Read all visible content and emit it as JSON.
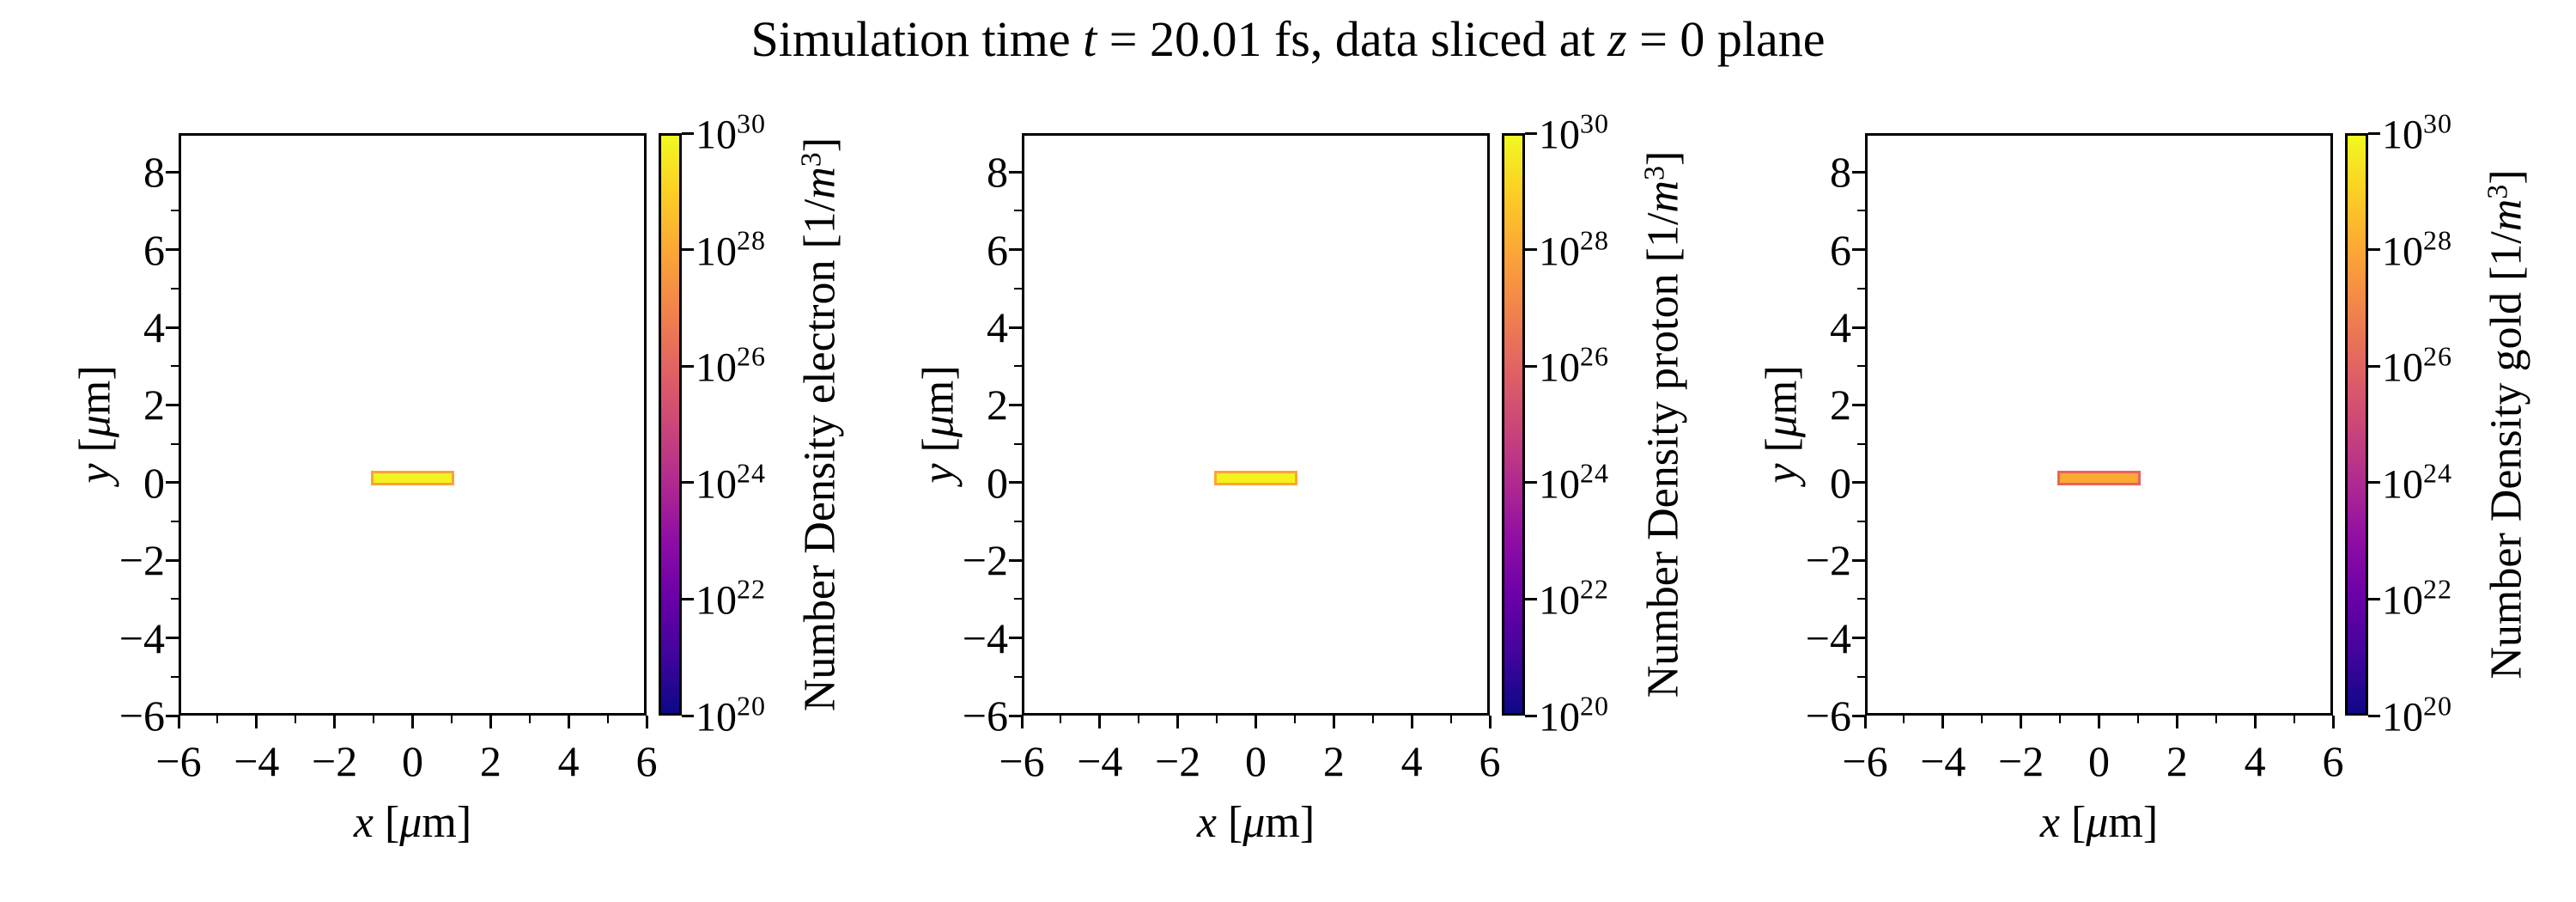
{
  "title": {
    "text": "Simulation time t = 20.01 fs, data sliced at z = 0 plane",
    "segments": [
      {
        "t": "Simulation time "
      },
      {
        "t": "t",
        "i": true
      },
      {
        "t": " = 20.01 fs, data sliced at "
      },
      {
        "t": "z",
        "i": true
      },
      {
        "t": " = 0 plane"
      }
    ]
  },
  "figure": {
    "background": "#ffffff",
    "text_color": "#000000"
  },
  "chart_data": {
    "type": "heatmap",
    "suptitle": "Simulation time t = 20.01 fs, data sliced at z = 0 plane",
    "layout_hint": "three side-by-side x-y density slice maps, each with its own log-scale colorbar on the right; equal aspect; no grid",
    "axes": {
      "xlabel": {
        "text": "x [μm]",
        "segments": [
          {
            "t": "x",
            "i": true
          },
          {
            "t": " ["
          },
          {
            "t": "μ",
            "i": true
          },
          {
            "t": "m]"
          }
        ]
      },
      "ylabel": {
        "text": "y [μm]",
        "segments": [
          {
            "t": "y",
            "i": true
          },
          {
            "t": " ["
          },
          {
            "t": "μ",
            "i": true
          },
          {
            "t": "m]"
          }
        ]
      },
      "xlim": [
        -6,
        6
      ],
      "ylim": [
        -6,
        9
      ],
      "x_major_ticks": [
        -6,
        -4,
        -2,
        0,
        2,
        4,
        6
      ],
      "x_tick_labels": [
        "−6",
        "−4",
        "−2",
        "0",
        "2",
        "4",
        "6"
      ],
      "x_minor_ticks": [
        -5,
        -3,
        -1,
        1,
        3,
        5
      ],
      "y_major_ticks": [
        8,
        6,
        4,
        2,
        0,
        -2,
        -4,
        -6
      ],
      "y_tick_labels": [
        "8",
        "6",
        "4",
        "2",
        "0",
        "−2",
        "−4",
        "−6"
      ],
      "y_minor_ticks": [
        7,
        5,
        3,
        1,
        -1,
        -3,
        -5
      ]
    },
    "colorbar": {
      "scale": "log",
      "min": "1e20",
      "max": "1e30",
      "range_exponents": [
        20,
        30
      ],
      "tick_exponents": [
        30,
        28,
        26,
        24,
        22,
        20
      ],
      "tick_base": "10",
      "tick_labels": [
        "10³⁰",
        "10²⁸",
        "10²⁶",
        "10²⁴",
        "10²²",
        "10²⁰"
      ],
      "colormap": "plasma",
      "gradient_stops": [
        {
          "pos": 0.0,
          "color": "#0d0887"
        },
        {
          "pos": 0.1,
          "color": "#41049d"
        },
        {
          "pos": 0.2,
          "color": "#6a00a8"
        },
        {
          "pos": 0.3,
          "color": "#8f0da4"
        },
        {
          "pos": 0.4,
          "color": "#b12a90"
        },
        {
          "pos": 0.5,
          "color": "#cc4778"
        },
        {
          "pos": 0.6,
          "color": "#e16462"
        },
        {
          "pos": 0.7,
          "color": "#f2844b"
        },
        {
          "pos": 0.8,
          "color": "#fca636"
        },
        {
          "pos": 0.9,
          "color": "#fcce25"
        },
        {
          "pos": 1.0,
          "color": "#f0f921"
        }
      ]
    },
    "panels": [
      {
        "species": "electron",
        "colorbar_label": {
          "text": "Number Density electron [1/m³]",
          "segments": [
            {
              "t": "Number Density electron [1/"
            },
            {
              "t": "m",
              "i": true
            },
            {
              "t": "3",
              "sup": true
            },
            {
              "t": "]"
            }
          ]
        },
        "target": {
          "shape": "rectangle",
          "x_extent": [
            -1,
            1
          ],
          "y_extent": [
            0,
            0.25
          ],
          "fill_color": "#f2f320",
          "edge_color": "#f9a23a",
          "value_estimate": "core ≈ 10³⁰ 1/m³ (yellow), rim lower density (orange)"
        },
        "background_value": "< 10²⁰ 1/m³ (rendered white)"
      },
      {
        "species": "proton",
        "colorbar_label": {
          "text": "Number Density proton [1/m³]",
          "segments": [
            {
              "t": "Number Density proton [1/"
            },
            {
              "t": "m",
              "i": true
            },
            {
              "t": "3",
              "sup": true
            },
            {
              "t": "]"
            }
          ]
        },
        "target": {
          "shape": "rectangle",
          "x_extent": [
            -1,
            1
          ],
          "y_extent": [
            0,
            0.25
          ],
          "fill_color": "#f4f21c",
          "edge_color": "#fba636",
          "value_estimate": "core ≈ 10³⁰ 1/m³ (yellow), rim lower density (orange)"
        },
        "background_value": "< 10²⁰ 1/m³ (rendered white)"
      },
      {
        "species": "gold",
        "colorbar_label": {
          "text": "Number Density gold [1/m³]",
          "segments": [
            {
              "t": "Number Density gold [1/"
            },
            {
              "t": "m",
              "i": true
            },
            {
              "t": "3",
              "sup": true
            },
            {
              "t": "]"
            }
          ]
        },
        "target": {
          "shape": "rectangle",
          "x_extent": [
            -1,
            1
          ],
          "y_extent": [
            0,
            0.25
          ],
          "fill_color": "#fbaa33",
          "edge_color": "#e8635d",
          "value_estimate": "core ≈ 10²⁸ 1/m³ (orange), rim lower density (pink-red)"
        },
        "background_value": "< 10²⁰ 1/m³ (rendered white)"
      }
    ]
  }
}
